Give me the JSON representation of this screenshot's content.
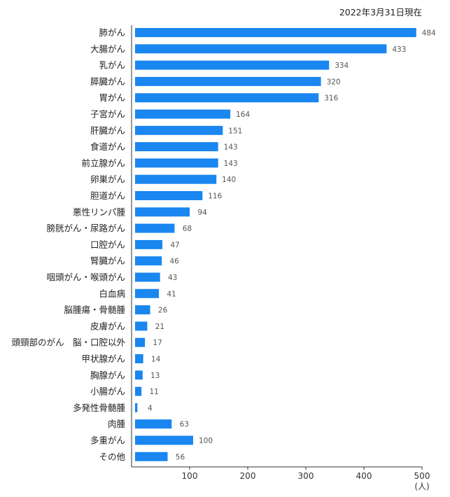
{
  "chart_data": {
    "type": "bar",
    "orientation": "horizontal",
    "note": "2022年3月31日現在",
    "categories": [
      "肺がん",
      "大腸がん",
      "乳がん",
      "膵臓がん",
      "胃がん",
      "子宮がん",
      "肝臓がん",
      "食道がん",
      "前立腺がん",
      "卵巣がん",
      "胆道がん",
      "悪性リンパ腫",
      "膀胱がん・尿路がん",
      "口腔がん",
      "腎臓がん",
      "咽頭がん・喉頭がん",
      "白血病",
      "脳腫瘍・骨髄腫",
      "皮膚がん",
      "頭頸部のがん　脳・口腔以外",
      "甲状腺がん",
      "胸腺がん",
      "小腸がん",
      "多発性骨髄腫",
      "肉腫",
      "多重がん",
      "その他"
    ],
    "values": [
      484,
      433,
      334,
      320,
      316,
      164,
      151,
      143,
      143,
      140,
      116,
      94,
      68,
      47,
      46,
      43,
      41,
      26,
      21,
      17,
      14,
      13,
      11,
      4,
      63,
      100,
      56
    ],
    "xlim": [
      0,
      500
    ],
    "ticks": [
      100,
      200,
      300,
      400,
      500
    ],
    "tick_labels": [
      "100",
      "200",
      "300",
      "400",
      "500"
    ],
    "unit": "(人)",
    "bar_color": "#1a86f0",
    "grid": false,
    "legend": "none"
  }
}
